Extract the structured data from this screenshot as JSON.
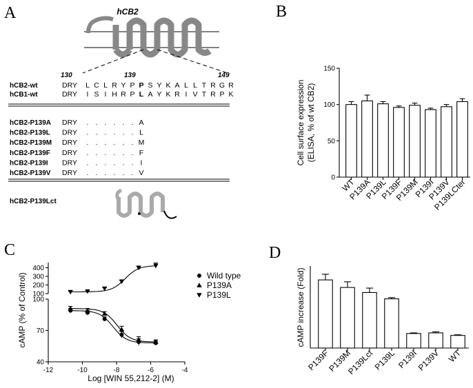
{
  "panels": {
    "a": "A",
    "b": "B",
    "c": "C",
    "d": "D"
  },
  "panel_a": {
    "protein_title": "hCB2",
    "pos_start": "130",
    "pos_mid": "139",
    "pos_end": "149",
    "wt_rows": [
      {
        "name": "hCB2-wt",
        "motif": "DRY",
        "residues": [
          "L",
          "C",
          "L",
          "R",
          "Y",
          "P",
          "P",
          "S",
          "Y",
          "K",
          "A",
          "L",
          "L",
          "T",
          "R",
          "G",
          "R"
        ]
      },
      {
        "name": "hCB1-wt",
        "motif": "DRY",
        "residues": [
          "I",
          "S",
          "I",
          "H",
          "R",
          "P",
          "L",
          "A",
          "Y",
          "K",
          "R",
          "I",
          "V",
          "T",
          "R",
          "P",
          "K"
        ]
      }
    ],
    "mutant_rows": [
      {
        "name": "hCB2-P139A",
        "motif": "DRY",
        "sub": "A"
      },
      {
        "name": "hCB2-P139L",
        "motif": "DRY",
        "sub": "L"
      },
      {
        "name": "hCB2-P139M",
        "motif": "DRY",
        "sub": "M"
      },
      {
        "name": "hCB2-P139F",
        "motif": "DRY",
        "sub": "F"
      },
      {
        "name": "hCB2-P139I",
        "motif": "DRY",
        "sub": "I"
      },
      {
        "name": "hCB2-P139V",
        "motif": "DRY",
        "sub": "V"
      }
    ],
    "dot_char": ".",
    "truncation_label": "hCB2-P139Lct"
  },
  "chart_data": [
    {
      "panel": "B",
      "type": "bar",
      "ylabel_line1": "Cell surface expression",
      "ylabel_line2": "(ELISA, % of wt CB2)",
      "ylim": [
        0,
        150
      ],
      "yticks": [
        "0",
        "50",
        "100",
        "150"
      ],
      "categories": [
        "WT",
        "P139A",
        "P139L",
        "P139F",
        "P139M",
        "P139I",
        "P139V",
        "P139LCter"
      ],
      "values": [
        100,
        105,
        101,
        96,
        99,
        93,
        97,
        104
      ],
      "errors": [
        4,
        8,
        3,
        2,
        3,
        2,
        3,
        4
      ]
    },
    {
      "panel": "C",
      "type": "scatter",
      "xlabel": "Log [WIN 55,212-2] (M)",
      "ylabel": "cAMP (% of Control)",
      "xlim": [
        -12,
        -4
      ],
      "xticks": [
        "-12",
        "-10",
        "-8",
        "-6",
        "-4"
      ],
      "upper_yticks": [
        "100",
        "200",
        "300",
        "400"
      ],
      "upper_ylim": [
        100,
        460
      ],
      "lower_yticks": [
        "40",
        "70",
        "100"
      ],
      "lower_ylim": [
        40,
        100
      ],
      "legend_position": "right",
      "x": [
        -10.7,
        -9.7,
        -8.7,
        -7.7,
        -6.7,
        -5.7
      ],
      "series": [
        {
          "name": "Wild type",
          "marker": "circle",
          "axis": "lower",
          "values": [
            89,
            87,
            81,
            66,
            59,
            58
          ],
          "errors": [
            2,
            2,
            2,
            3,
            3,
            2
          ]
        },
        {
          "name": "P139A",
          "marker": "triangle-up",
          "axis": "lower",
          "values": [
            91,
            89,
            86,
            71,
            61,
            59
          ],
          "errors": [
            2,
            2,
            2,
            3,
            3,
            2
          ]
        },
        {
          "name": "P139L",
          "marker": "triangle-down",
          "axis": "upper",
          "values": [
            120,
            127,
            160,
            240,
            400,
            425
          ],
          "errors": [
            5,
            5,
            8,
            20,
            20,
            30
          ]
        }
      ]
    },
    {
      "panel": "D",
      "type": "bar",
      "ylabel": "cAMP increase (Fold)",
      "ylim": [
        0,
        6.5
      ],
      "categories": [
        "P139F",
        "P139M",
        "P139Lct",
        "P139L",
        "P139I",
        "P139V",
        "WT"
      ],
      "values": [
        5.4,
        4.8,
        4.4,
        3.9,
        1.15,
        1.2,
        1.0
      ],
      "errors": [
        0.45,
        0.45,
        0.35,
        0.1,
        0.05,
        0.08,
        0.05
      ]
    }
  ]
}
